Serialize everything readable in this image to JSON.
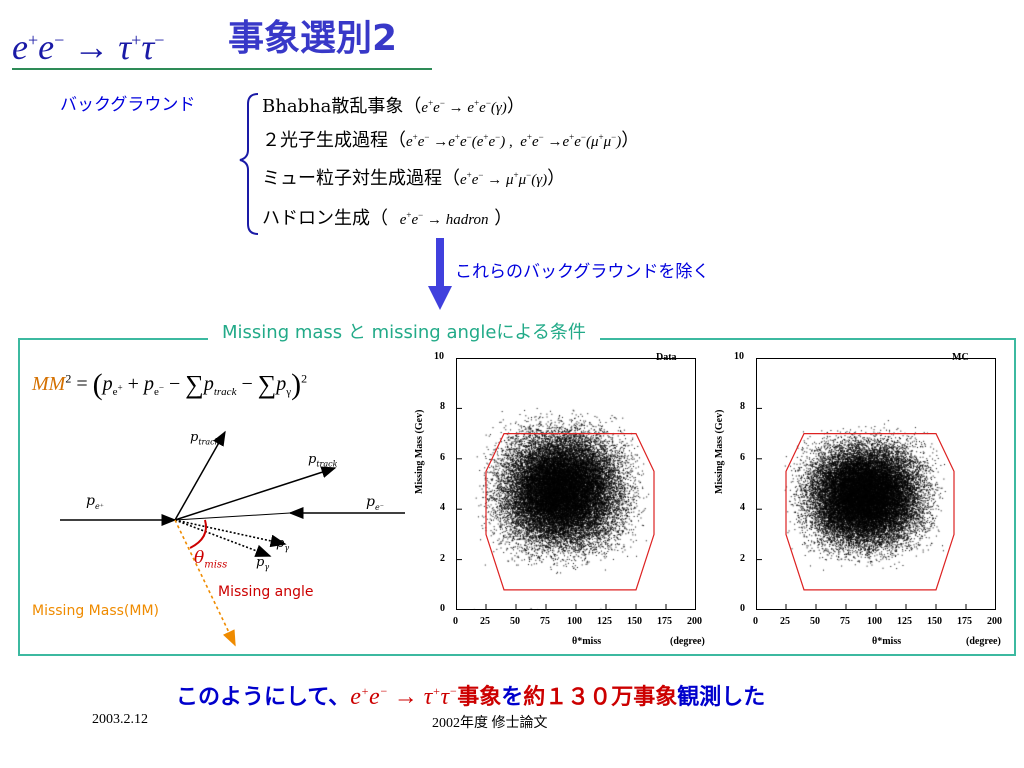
{
  "title": {
    "reaction": "e⁺e⁻ → τ⁺τ⁻",
    "japanese": "事象選別2"
  },
  "background": {
    "label": "バックグラウンド",
    "items": [
      {
        "name": "Bhabha散乱事象",
        "process": "e⁺e⁻ → e⁺e⁻(γ)"
      },
      {
        "name": "２光子生成過程",
        "process": "e⁺e⁻ → e⁺e⁻(e⁺e⁻) ,  e⁺e⁻ → e⁺e⁻(μ⁺μ⁻)"
      },
      {
        "name": "ミュー粒子対生成過程",
        "process": "e⁺e⁻ → μ⁺μ⁻(γ)"
      },
      {
        "name": "ハドロン生成",
        "process": "e⁺e⁻ → hadron"
      }
    ],
    "removal_note": "これらのバックグラウンドを除く"
  },
  "box": {
    "title": "Missing mass と  missing angleによる条件",
    "formula": "MM² = ( p_e⁺ + p_e⁻ − Σ p_track − Σ p_γ )²",
    "diagram": {
      "p_track": "p",
      "p_track_sub": "track",
      "p_eplus": "p",
      "p_eplus_sub": "e⁺",
      "p_eminus": "p",
      "p_eminus_sub": "e⁻",
      "p_gamma": "p",
      "p_gamma_sub": "γ",
      "theta": "θ",
      "theta_sub": "miss",
      "missing_angle": "Missing angle",
      "missing_mass": "Missing Mass(MM)"
    }
  },
  "plots": [
    {
      "label": "Data",
      "ylabel": "Missing Mass (Gev)",
      "xlabel": "θ*miss",
      "xunit": "(degree)",
      "xticks": [
        "0",
        "25",
        "50",
        "75",
        "100",
        "125",
        "150",
        "175",
        "200"
      ],
      "yticks": [
        "0",
        "2",
        "4",
        "6",
        "8",
        "10"
      ],
      "xlim": [
        0,
        200
      ],
      "ylim": [
        0,
        10
      ],
      "cut_polygon": [
        [
          25,
          3
        ],
        [
          40,
          0.8
        ],
        [
          150,
          0.8
        ],
        [
          165,
          3
        ],
        [
          165,
          5.5
        ],
        [
          150,
          7
        ],
        [
          40,
          7
        ],
        [
          25,
          5.5
        ]
      ]
    },
    {
      "label": "MC",
      "ylabel": "Missing Mass (Gev)",
      "xlabel": "θ*miss",
      "xunit": "(degree)",
      "xticks": [
        "0",
        "25",
        "50",
        "75",
        "100",
        "125",
        "150",
        "175",
        "200"
      ],
      "yticks": [
        "0",
        "2",
        "4",
        "6",
        "8",
        "10"
      ],
      "xlim": [
        0,
        200
      ],
      "ylim": [
        0,
        10
      ],
      "cut_polygon": [
        [
          25,
          3
        ],
        [
          40,
          0.8
        ],
        [
          150,
          0.8
        ],
        [
          165,
          3
        ],
        [
          165,
          5.5
        ],
        [
          150,
          7
        ],
        [
          40,
          7
        ],
        [
          25,
          5.5
        ]
      ]
    }
  ],
  "conclusion": {
    "prefix": "このようにして、",
    "reaction": "e⁺e⁻ → τ⁺τ⁻",
    "suffix_red1": "事象",
    "suffix_blue1": "を",
    "suffix_red2": "約１３０万事象",
    "suffix_blue2": "観測した"
  },
  "footer": {
    "date": "2003.2.12",
    "text": "2002年度 修士論文"
  },
  "colors": {
    "title_blue": "#3838c8",
    "accent_blue": "#0000dd",
    "box_green": "#3cb9a0",
    "orange": "#ef8b00",
    "red": "#cc0000"
  }
}
